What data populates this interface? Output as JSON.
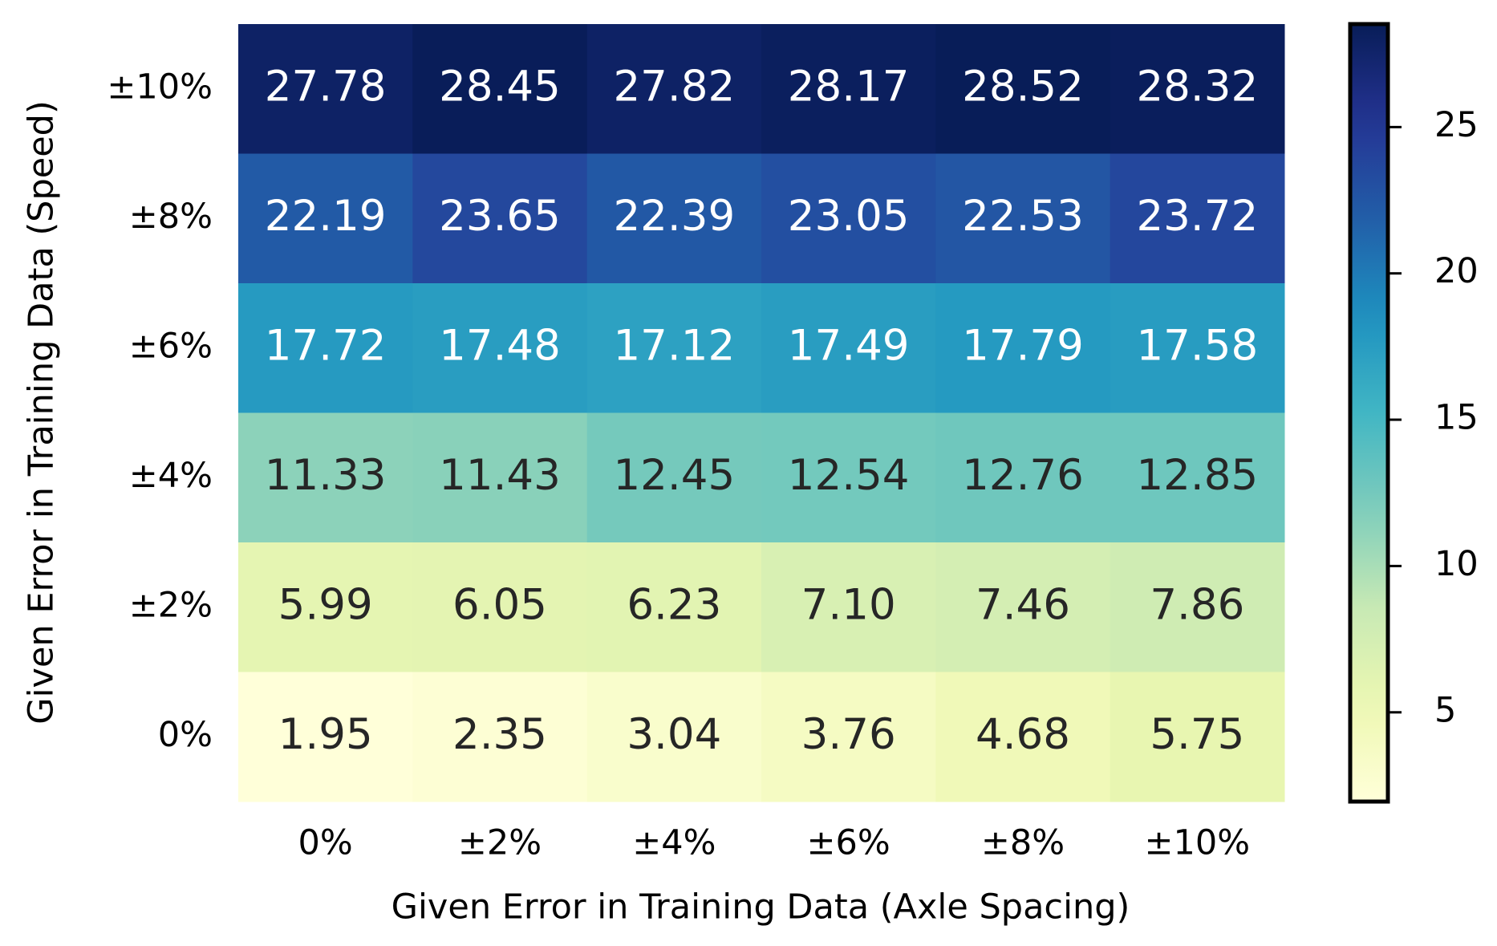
{
  "chart_data": {
    "type": "heatmap",
    "xlabel": "Given Error in Training Data (Axle Spacing)",
    "ylabel": "Given Error in Training Data (Speed)",
    "x_categories": [
      "0%",
      "±2%",
      "±4%",
      "±6%",
      "±8%",
      "±10%"
    ],
    "y_categories": [
      "±10%",
      "±8%",
      "±6%",
      "±4%",
      "±2%",
      "0%"
    ],
    "values": [
      [
        27.78,
        28.45,
        27.82,
        28.17,
        28.52,
        28.32
      ],
      [
        22.19,
        23.65,
        22.39,
        23.05,
        22.53,
        23.72
      ],
      [
        17.72,
        17.48,
        17.12,
        17.49,
        17.79,
        17.58
      ],
      [
        11.33,
        11.43,
        12.45,
        12.54,
        12.76,
        12.85
      ],
      [
        5.99,
        6.05,
        6.23,
        7.1,
        7.46,
        7.86
      ],
      [
        1.95,
        2.35,
        3.04,
        3.76,
        4.68,
        5.75
      ]
    ],
    "value_labels": [
      [
        "27.78",
        "28.45",
        "27.82",
        "28.17",
        "28.52",
        "28.32"
      ],
      [
        "22.19",
        "23.65",
        "22.39",
        "23.05",
        "22.53",
        "23.72"
      ],
      [
        "17.72",
        "17.48",
        "17.12",
        "17.49",
        "17.79",
        "17.58"
      ],
      [
        "11.33",
        "11.43",
        "12.45",
        "12.54",
        "12.76",
        "12.85"
      ],
      [
        "5.99",
        "6.05",
        "6.23",
        "7.10",
        "7.46",
        "7.86"
      ],
      [
        "1.95",
        "2.35",
        "3.04",
        "3.76",
        "4.68",
        "5.75"
      ]
    ],
    "colormap": "YlGnBu",
    "clim": [
      1.95,
      28.52
    ],
    "cticks": [
      5,
      10,
      15,
      20,
      25
    ]
  }
}
